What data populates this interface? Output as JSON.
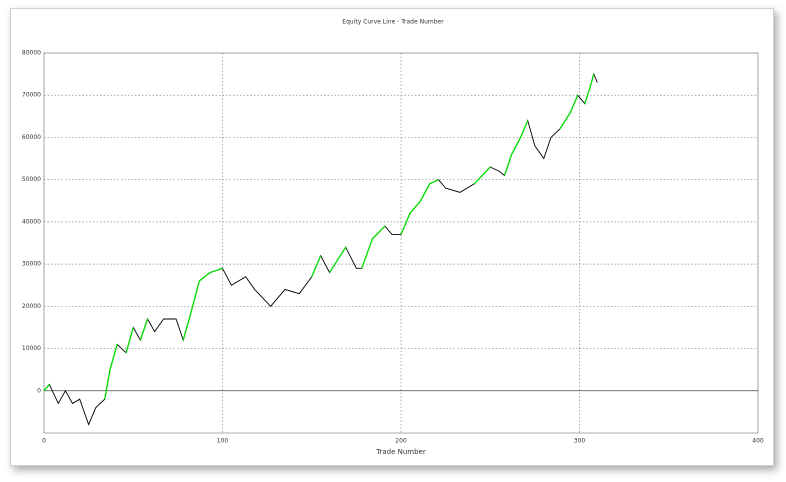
{
  "chart_data": {
    "type": "line",
    "title": "Equity Curve Line - Trade Number",
    "x_label": "Trade Number",
    "xlim": [
      0,
      400
    ],
    "xticks": [
      0,
      100,
      200,
      300,
      400
    ],
    "ylim": [
      -10000,
      80000
    ],
    "yticks": [
      0,
      10000,
      20000,
      30000,
      40000,
      50000,
      60000,
      70000,
      80000
    ],
    "grid": true,
    "new_high_color": "#00e000",
    "x": [
      0,
      3,
      8,
      12,
      16,
      20,
      25,
      29,
      34,
      37,
      41,
      46,
      50,
      54,
      58,
      62,
      67,
      74,
      78,
      82,
      87,
      93,
      100,
      105,
      113,
      118,
      127,
      135,
      143,
      150,
      155,
      160,
      169,
      175,
      178,
      184,
      191,
      195,
      200,
      205,
      211,
      216,
      221,
      225,
      233,
      241,
      250,
      255,
      258,
      262,
      267,
      271,
      275,
      280,
      284,
      289,
      295,
      299,
      303,
      306,
      308,
      310
    ],
    "series": [
      {
        "color": "#000000",
        "values": [
          0,
          1500,
          -3000,
          0,
          -3000,
          -2000,
          -8000,
          -4000,
          -2000,
          5000,
          11000,
          9000,
          15000,
          12000,
          17000,
          14000,
          17000,
          17000,
          12000,
          18000,
          26000,
          28000,
          29000,
          25000,
          27000,
          24000,
          20000,
          24000,
          23000,
          27000,
          32000,
          28000,
          34000,
          29000,
          29000,
          36000,
          39000,
          37000,
          37000,
          42000,
          45000,
          49000,
          50000,
          48000,
          47000,
          49000,
          53000,
          52000,
          51000,
          56000,
          60000,
          64000,
          58000,
          55000,
          60000,
          62000,
          66000,
          70000,
          68000,
          72000,
          75000,
          73000
        ]
      }
    ]
  }
}
